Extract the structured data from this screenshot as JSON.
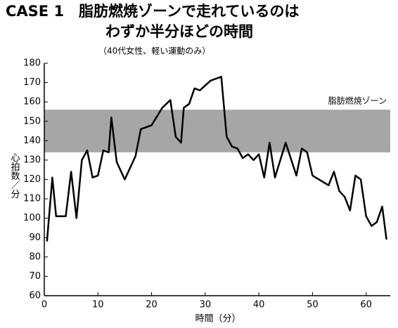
{
  "chart_data": {
    "type": "line",
    "title": [
      "CASE 1　脂肪燃焼ゾーンで走れているのは",
      "わずか半分ほどの時間"
    ],
    "subtitle": "（40代女性、軽い運動のみ）",
    "y_label": "心拍数／分",
    "x_label": "時間（分）",
    "band": {
      "label": "脂肪燃焼ゾーン",
      "range": [
        134,
        156
      ],
      "color": "#a6a6a6"
    },
    "x": [
      0.5,
      1.5,
      2.2,
      4,
      5,
      6,
      7,
      8,
      9,
      10,
      11,
      12,
      12.5,
      13.5,
      15,
      17,
      18,
      20,
      22,
      23.5,
      24.5,
      25.5,
      26,
      27,
      28,
      29,
      31,
      33,
      34,
      35,
      36,
      37,
      38,
      39,
      40,
      41,
      42,
      43,
      45,
      47,
      48,
      49,
      50,
      53,
      54,
      55,
      56,
      57,
      58,
      59,
      60,
      61,
      62,
      63,
      63.8
    ],
    "series": [
      {
        "name": null,
        "color": "#000000",
        "values": [
          88,
          121,
          101,
          101,
          124,
          100,
          130,
          135,
          121,
          122,
          135,
          134,
          152,
          129,
          120,
          132,
          146,
          148,
          157,
          161,
          142,
          139,
          157,
          159,
          167,
          166,
          171,
          173,
          142,
          137,
          136,
          131,
          133,
          130,
          133,
          121,
          139,
          121,
          139,
          122,
          136,
          134,
          122,
          117,
          124,
          114,
          111,
          104,
          122,
          120,
          101,
          96,
          98,
          106,
          89
        ]
      }
    ],
    "xlim": [
      0,
      64.5
    ],
    "xticks": [
      0,
      10,
      20,
      30,
      40,
      50,
      60
    ],
    "ylim": [
      60,
      180
    ],
    "yticks": [
      60,
      70,
      80,
      90,
      100,
      110,
      120,
      130,
      140,
      150,
      160,
      170,
      180
    ]
  }
}
